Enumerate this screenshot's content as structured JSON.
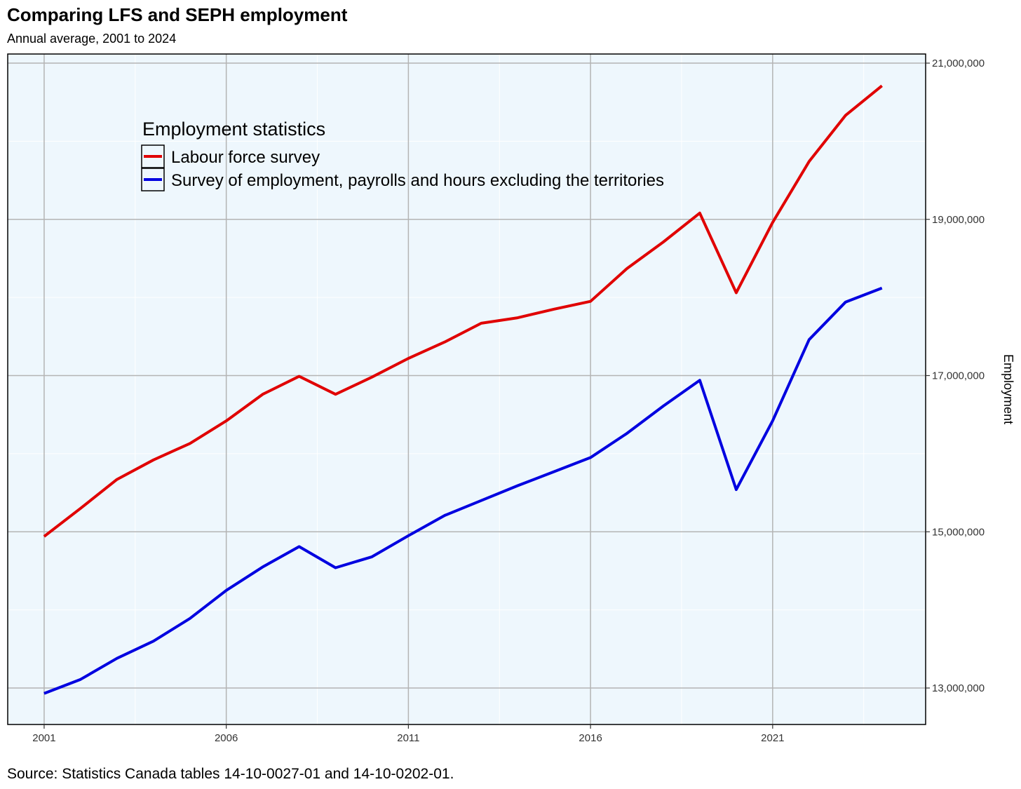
{
  "chart_data": {
    "type": "line",
    "title": "Comparing LFS and SEPH employment",
    "subtitle": "Annual average, 2001 to 2024",
    "source": "Source: Statistics Canada tables 14-10-0027-01 and 14-10-0202-01.",
    "ylabel": "Employment",
    "xlabel": "",
    "x": [
      2001,
      2002,
      2003,
      2004,
      2005,
      2006,
      2007,
      2008,
      2009,
      2010,
      2011,
      2012,
      2013,
      2014,
      2015,
      2016,
      2017,
      2018,
      2019,
      2020,
      2021,
      2022,
      2023,
      2024
    ],
    "xlim": [
      2000,
      2025.2
    ],
    "ylim": [
      12500000,
      21000000
    ],
    "x_ticks": [
      2001,
      2006,
      2011,
      2016,
      2021
    ],
    "x_tick_labels": [
      "2001",
      "2006",
      "2011",
      "2016",
      "2021"
    ],
    "y_ticks": [
      13000000,
      15000000,
      17000000,
      19000000,
      21000000
    ],
    "y_tick_labels": [
      "13,000,000",
      "15,000,000",
      "17,000,000",
      "19,000,000",
      "21,000,000"
    ],
    "y_axis_side": "right",
    "grid": true,
    "legend": {
      "title": "Employment statistics",
      "placement": "top-left"
    },
    "series": [
      {
        "name": "Labour force survey",
        "color": "#e00000",
        "values": [
          14940000,
          15300000,
          15670000,
          15920000,
          16130000,
          16420000,
          16760000,
          16990000,
          16760000,
          16980000,
          17220000,
          17430000,
          17670000,
          17740000,
          17850000,
          17950000,
          18370000,
          18710000,
          19080000,
          18060000,
          18960000,
          19740000,
          20330000,
          20710000
        ]
      },
      {
        "name": "Survey of employment, payrolls and hours excluding the territories",
        "color": "#0000e0",
        "values": [
          12930000,
          13110000,
          13380000,
          13600000,
          13890000,
          14250000,
          14550000,
          14810000,
          14540000,
          14680000,
          14950000,
          15210000,
          15400000,
          15590000,
          15770000,
          15950000,
          16260000,
          16610000,
          16940000,
          15540000,
          16420000,
          17460000,
          17940000,
          18120000
        ]
      }
    ]
  },
  "colors": {
    "panel_background": "#eef7fd",
    "grid_major": "#b4b4b4",
    "grid_minor": "#ffffff",
    "panel_border": "#000000"
  }
}
